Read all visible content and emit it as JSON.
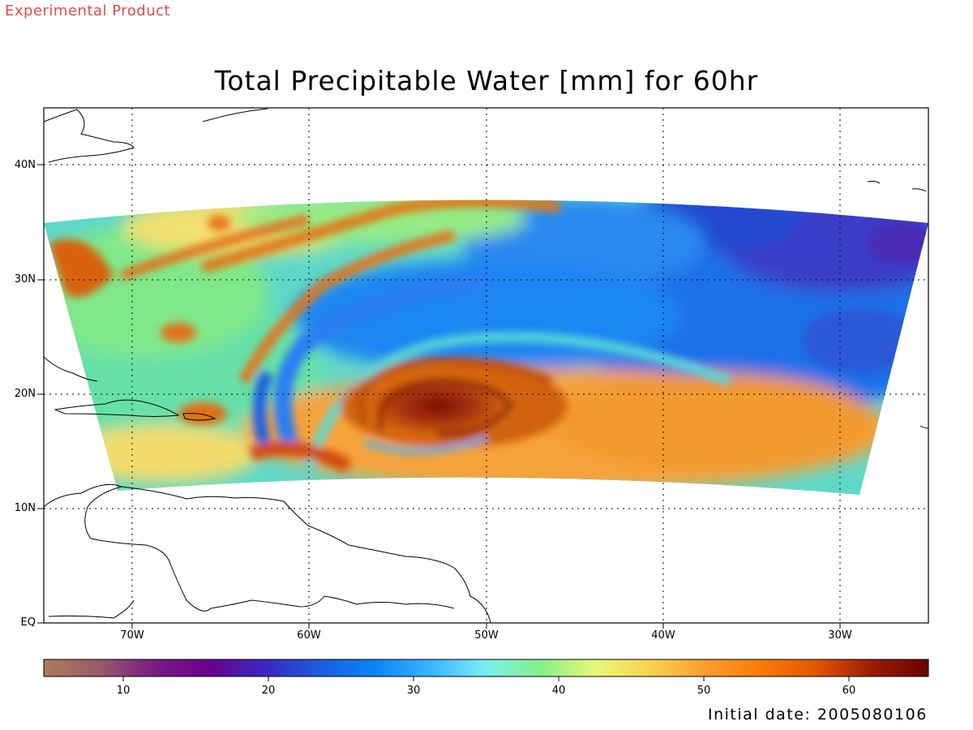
{
  "header": {
    "stamp": "Experimental Product"
  },
  "title": "Total Precipitable Water [mm] for 60hr",
  "map": {
    "lat_labels": [
      "40N",
      "30N",
      "20N",
      "10N",
      "EQ"
    ],
    "lon_labels": [
      "70W",
      "60W",
      "50W",
      "40W",
      "30W"
    ],
    "lon_range_deg": [
      -75,
      -25
    ],
    "lat_range_deg": [
      0,
      45
    ],
    "grid": "dotted"
  },
  "colorbar": {
    "range": [
      5,
      66
    ],
    "ticks": [
      "10",
      "20",
      "30",
      "40",
      "50",
      "60"
    ],
    "stops": [
      "#b07a58",
      "#9a5a6a",
      "#7a1a84",
      "#6a008e",
      "#3a28c0",
      "#1a5ce0",
      "#0a86f5",
      "#3ab4ff",
      "#78f0f0",
      "#88f088",
      "#e8f878",
      "#fad050",
      "#fa9c2c",
      "#fa7a04",
      "#e05404",
      "#9a1a04",
      "#6a0004"
    ]
  },
  "footer": {
    "initial_date": "Initial date: 2005080106"
  }
}
